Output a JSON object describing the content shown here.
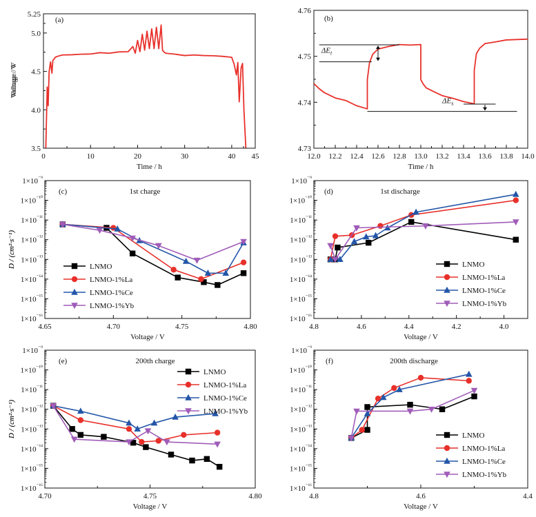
{
  "colors": {
    "LNMO": "#000000",
    "LNMO-1%La": "#e8302a",
    "LNMO-1%Ce": "#2356a8",
    "LNMO-1%Yb": "#a05cb8",
    "voltage_curve": "#e8302a",
    "axis": "#111111"
  },
  "chart_data": [
    {
      "panel": "(a)",
      "type": "line",
      "xlabel": "Time / h",
      "ylabel": "Voltage / V",
      "xlim": [
        0,
        45
      ],
      "ylim": [
        3.5,
        5.25
      ],
      "xticks": [
        0,
        10,
        20,
        30,
        40,
        45
      ],
      "xtick_labels": [
        "0",
        "10",
        "20",
        "30",
        "40",
        "45"
      ],
      "yticks": [
        3.5,
        4.0,
        4.5,
        5.0,
        5.25
      ],
      "ytick_labels": [
        "3.5",
        "4.0",
        "4.5",
        "5.0",
        "5.25"
      ],
      "legend": "none",
      "grid": false,
      "series": [
        {
          "color": "#e8302a",
          "x": [
            0.5,
            0.8,
            1.0,
            1.2,
            1.5,
            1.8,
            2.0,
            2.2,
            2.5,
            3.0,
            4,
            6,
            8,
            10,
            12,
            14,
            16,
            18,
            19,
            19.5,
            20,
            20.5,
            21,
            21.5,
            22,
            22.5,
            23,
            23.5,
            24,
            24.5,
            25,
            25.3,
            25.6,
            26,
            28,
            30,
            32,
            34,
            36,
            38,
            40,
            40.5,
            41,
            41.3,
            41.6,
            42,
            42.3,
            42.6,
            43
          ],
          "y": [
            3.5,
            4.3,
            4.05,
            4.5,
            4.62,
            4.48,
            4.64,
            4.66,
            4.68,
            4.7,
            4.71,
            4.72,
            4.72,
            4.73,
            4.74,
            4.74,
            4.75,
            4.76,
            4.82,
            4.74,
            4.9,
            4.76,
            4.98,
            4.78,
            5.02,
            4.8,
            5.05,
            4.8,
            5.07,
            4.8,
            5.1,
            4.78,
            4.75,
            4.74,
            4.72,
            4.71,
            4.71,
            4.71,
            4.7,
            4.7,
            4.68,
            4.6,
            4.45,
            4.62,
            4.1,
            4.55,
            4.6,
            4.0,
            3.5
          ]
        }
      ]
    },
    {
      "panel": "(b)",
      "type": "line",
      "xlabel": "Time / h",
      "ylabel": "Voltage / V",
      "xlim": [
        12.0,
        14.0
      ],
      "ylim": [
        4.73,
        4.76
      ],
      "xticks": [
        12.0,
        12.2,
        12.4,
        12.6,
        12.8,
        13.0,
        13.2,
        13.4,
        13.6,
        13.8,
        14.0
      ],
      "xtick_labels": [
        "12.0",
        "12.2",
        "12.4",
        "12.6",
        "12.8",
        "13.0",
        "13.2",
        "13.4",
        "13.6",
        "13.8",
        "14.0"
      ],
      "yticks": [
        4.73,
        4.74,
        4.75,
        4.76
      ],
      "ytick_labels": [
        "4.73",
        "4.74",
        "4.75",
        "4.76"
      ],
      "legend": "none",
      "grid": false,
      "annotations": [
        "ΔEt",
        "ΔEs"
      ],
      "series": [
        {
          "color": "#e8302a",
          "x": [
            12.0,
            12.05,
            12.1,
            12.2,
            12.3,
            12.4,
            12.5,
            12.5,
            12.52,
            12.55,
            12.6,
            12.7,
            12.8,
            12.9,
            13.0,
            13.0,
            13.02,
            13.05,
            13.1,
            13.2,
            13.3,
            13.4,
            13.5,
            13.5,
            13.52,
            13.55,
            13.6,
            13.7,
            13.8,
            14.0
          ],
          "y": [
            4.744,
            4.743,
            4.742,
            4.741,
            4.7403,
            4.7393,
            4.7385,
            4.745,
            4.7485,
            4.7505,
            4.7515,
            4.7522,
            4.7525,
            4.7525,
            4.7525,
            4.745,
            4.744,
            4.7432,
            4.7425,
            4.7415,
            4.7408,
            4.7402,
            4.7396,
            4.747,
            4.7505,
            4.7518,
            4.7527,
            4.7532,
            4.7535,
            4.7538
          ]
        }
      ]
    },
    {
      "panel": "(c)",
      "type": "line",
      "title": "1st charge",
      "xlabel": "Voltage / V",
      "ylabel": "D / (cm²·s⁻¹)",
      "yscale": "log",
      "xlim": [
        4.65,
        4.8
      ],
      "ylim": [
        1e-16,
        1e-09
      ],
      "xticks": [
        4.65,
        4.7,
        4.75,
        4.8
      ],
      "xtick_labels": [
        "4.65",
        "4.70",
        "4.75",
        "4.80"
      ],
      "ytick_labels": [
        "1×10⁻¹⁶",
        "1×10⁻¹⁵",
        "1×10⁻¹⁴",
        "1×10⁻¹³",
        "1×10⁻¹²",
        "1×10⁻¹¹",
        "1×10⁻¹⁰",
        "1×10⁻⁹"
      ],
      "legend": "bottom-left",
      "grid": false,
      "series": [
        {
          "name": "LNMO",
          "marker": "square",
          "x": [
            4.663,
            4.695,
            4.714,
            4.747,
            4.766,
            4.776,
            4.795
          ],
          "y": [
            6e-12,
            4e-12,
            2e-13,
            1.2e-14,
            7e-15,
            5e-15,
            2e-14
          ]
        },
        {
          "name": "LNMO-1%La",
          "marker": "circle",
          "x": [
            4.663,
            4.7,
            4.744,
            4.764,
            4.795
          ],
          "y": [
            6e-12,
            4e-12,
            3e-14,
            1e-14,
            7e-14
          ]
        },
        {
          "name": "LNMO-1%Ce",
          "marker": "triangle-up",
          "x": [
            4.663,
            4.703,
            4.719,
            4.753,
            4.769,
            4.782,
            4.795
          ],
          "y": [
            6e-12,
            3.5e-12,
            9e-13,
            8e-14,
            2e-14,
            2e-14,
            7e-13
          ]
        },
        {
          "name": "LNMO-1%Yb",
          "marker": "triangle-down",
          "x": [
            4.663,
            4.69,
            4.714,
            4.733,
            4.761,
            4.795
          ],
          "y": [
            6e-12,
            3e-12,
            1.2e-12,
            5e-13,
            9e-14,
            8e-13
          ]
        }
      ]
    },
    {
      "panel": "(d)",
      "type": "line",
      "title": "1st discharge",
      "xlabel": "Voltage / V",
      "ylabel": "D / (cm²·s⁻¹)",
      "yscale": "log",
      "xlim": [
        4.8,
        3.9
      ],
      "x_reversed": true,
      "ylim": [
        1e-16,
        1e-09
      ],
      "xticks": [
        4.8,
        4.6,
        4.4,
        4.2,
        4.0
      ],
      "xtick_labels": [
        "4.8",
        "4.6",
        "4.4",
        "4.2",
        "4.0"
      ],
      "ytick_labels": [
        "1×10⁻¹⁶",
        "1×10⁻¹⁵",
        "1×10⁻¹⁴",
        "1×10⁻¹³",
        "1×10⁻¹²",
        "1×10⁻¹¹",
        "1×10⁻¹⁰",
        "1×10⁻⁹"
      ],
      "legend": "bottom-right",
      "grid": false,
      "series": [
        {
          "name": "LNMO",
          "marker": "square",
          "x": [
            4.73,
            4.71,
            4.7,
            4.57,
            4.39,
            3.95
          ],
          "y": [
            1e-13,
            1e-13,
            4e-13,
            7e-13,
            8e-12,
            1e-12
          ]
        },
        {
          "name": "LNMO-1%La",
          "marker": "circle",
          "x": [
            4.73,
            4.71,
            4.64,
            4.52,
            4.39,
            3.95
          ],
          "y": [
            1e-13,
            1.5e-12,
            1.7e-12,
            5e-12,
            1.8e-11,
            1e-10
          ]
        },
        {
          "name": "LNMO-1%Ce",
          "marker": "triangle-up",
          "x": [
            4.73,
            4.69,
            4.63,
            4.58,
            4.54,
            4.49,
            4.37,
            3.95
          ],
          "y": [
            1e-13,
            1e-13,
            8e-13,
            1.4e-12,
            1.6e-12,
            4e-12,
            2.5e-11,
            2e-10
          ]
        },
        {
          "name": "LNMO-1%Yb",
          "marker": "triangle-down",
          "x": [
            4.73,
            4.71,
            4.62,
            4.33,
            3.95
          ],
          "y": [
            5e-13,
            1e-13,
            4e-12,
            5e-12,
            8e-12
          ]
        }
      ]
    },
    {
      "panel": "(e)",
      "type": "line",
      "title": "200th charge",
      "xlabel": "Voltage / V",
      "ylabel": "D / (cm²·s⁻¹)",
      "yscale": "log",
      "xlim": [
        4.7,
        4.8
      ],
      "ylim": [
        1e-16,
        1e-09
      ],
      "xticks": [
        4.7,
        4.75,
        4.8
      ],
      "xtick_labels": [
        "4.70",
        "4.75",
        "4.80"
      ],
      "ytick_labels": [
        "1×10⁻¹⁶",
        "1×10⁻¹⁵",
        "1×10⁻¹⁴",
        "1×10⁻¹³",
        "1×10⁻¹²",
        "1×10⁻¹¹",
        "1×10⁻¹⁰",
        "1×10⁻⁹"
      ],
      "legend": "top-right",
      "grid": false,
      "series": [
        {
          "name": "LNMO",
          "marker": "square",
          "x": [
            4.704,
            4.713,
            4.717,
            4.728,
            4.742,
            4.748,
            4.76,
            4.77,
            4.777,
            4.783
          ],
          "y": [
            1.5e-12,
            1e-13,
            5e-14,
            4e-14,
            2e-14,
            1.2e-14,
            5e-15,
            2.5e-15,
            3e-15,
            1.2e-15
          ]
        },
        {
          "name": "LNMO-1%La",
          "marker": "circle",
          "x": [
            4.704,
            4.717,
            4.74,
            4.746,
            4.754,
            4.766,
            4.782
          ],
          "y": [
            1.5e-12,
            2.8e-13,
            1e-13,
            2.2e-14,
            2.5e-14,
            5e-14,
            6.5e-14
          ]
        },
        {
          "name": "LNMO-1%Ce",
          "marker": "triangle-up",
          "x": [
            4.704,
            4.717,
            4.74,
            4.744,
            4.752,
            4.762,
            4.781
          ],
          "y": [
            1.5e-12,
            8e-13,
            2e-13,
            1e-13,
            2e-13,
            4e-13,
            6e-13
          ]
        },
        {
          "name": "LNMO-1%Yb",
          "marker": "triangle-down",
          "x": [
            4.704,
            4.714,
            4.74,
            4.749,
            4.758,
            4.782
          ],
          "y": [
            1.5e-12,
            3e-14,
            2.2e-14,
            8e-14,
            2.2e-14,
            1.7e-14
          ]
        }
      ]
    },
    {
      "panel": "(f)",
      "type": "line",
      "title": "200th discharge",
      "xlabel": "Voltage / V",
      "ylabel": "D / (cm²·s⁻¹)",
      "yscale": "log",
      "xlim": [
        4.8,
        4.4
      ],
      "x_reversed": true,
      "ylim": [
        1e-16,
        1e-09
      ],
      "xticks": [
        4.8,
        4.6,
        4.4
      ],
      "xtick_labels": [
        "4.8",
        "4.6",
        "4.4"
      ],
      "ytick_labels": [
        "1×10⁻¹⁶",
        "1×10⁻¹⁵",
        "1×10⁻¹⁴",
        "1×10⁻¹³",
        "1×10⁻¹²",
        "1×10⁻¹¹",
        "1×10⁻¹⁰",
        "1×10⁻⁹"
      ],
      "legend": "bottom-right",
      "grid": false,
      "series": [
        {
          "name": "LNMO",
          "marker": "square",
          "x": [
            4.73,
            4.7,
            4.7,
            4.62,
            4.56,
            4.5
          ],
          "y": [
            3.5e-14,
            9e-14,
            1.3e-12,
            1.7e-12,
            1e-12,
            4.5e-12
          ]
        },
        {
          "name": "LNMO-1%La",
          "marker": "circle",
          "x": [
            4.73,
            4.71,
            4.68,
            4.65,
            4.6,
            4.51
          ],
          "y": [
            3.5e-14,
            9e-14,
            3.5e-12,
            1.2e-11,
            4e-11,
            2.8e-11
          ]
        },
        {
          "name": "LNMO-1%Ce",
          "marker": "triangle-up",
          "x": [
            4.73,
            4.7,
            4.67,
            4.64,
            4.51
          ],
          "y": [
            3.5e-14,
            6e-13,
            4e-12,
            1e-11,
            6e-11
          ]
        },
        {
          "name": "LNMO-1%Yb",
          "marker": "triangle-down",
          "x": [
            4.73,
            4.72,
            4.62,
            4.58,
            4.5
          ],
          "y": [
            3.5e-14,
            8e-13,
            8e-13,
            1e-12,
            9e-12
          ]
        }
      ]
    }
  ]
}
